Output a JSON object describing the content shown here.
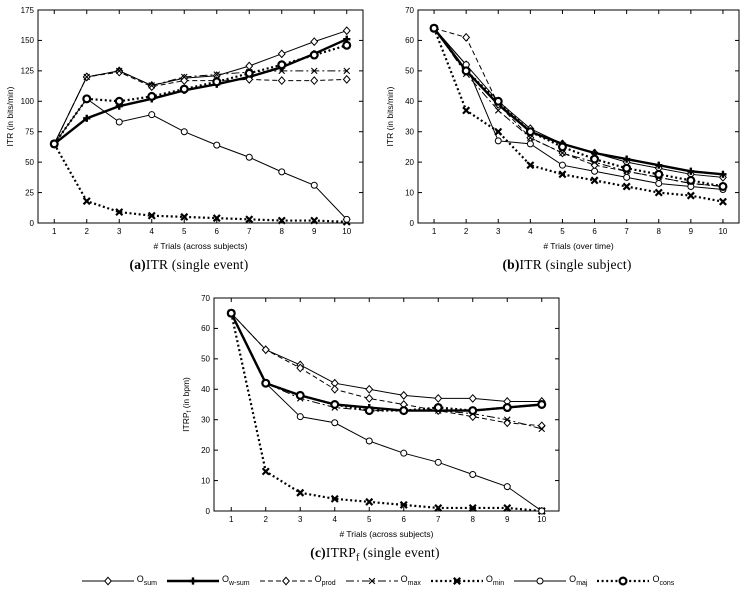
{
  "figure": {
    "background": "#ffffff",
    "ink": "#000000"
  },
  "captions": [
    {
      "prefix": "(a)",
      "main": "ITR",
      "sub": "",
      "rest": " (single event)"
    },
    {
      "prefix": "(b)",
      "main": "ITR",
      "sub": "",
      "rest": " (single subject)"
    },
    {
      "prefix": "(c)",
      "main": "ITRP",
      "sub": "f",
      "rest": " (single event)"
    }
  ],
  "legend": {
    "operator_prefix": "O",
    "items": [
      {
        "label": "sum",
        "marker": "diamond",
        "line": "solid",
        "width": 1
      },
      {
        "label": "w-sum",
        "marker": "plus",
        "line": "solid",
        "width": 2.4
      },
      {
        "label": "prod",
        "marker": "diamond",
        "line": "dashed",
        "width": 1
      },
      {
        "label": "max",
        "marker": "x",
        "line": "dashdot",
        "width": 1
      },
      {
        "label": "min",
        "marker": "x-bold",
        "line": "dotted",
        "width": 2.2
      },
      {
        "label": "maj",
        "marker": "circle",
        "line": "solid",
        "width": 1
      },
      {
        "label": "cons",
        "marker": "circle-bold",
        "line": "dotted",
        "width": 2.2
      }
    ]
  },
  "chart_data": [
    {
      "id": "a",
      "type": "line",
      "title": "",
      "xlabel": "# Trials (across subjects)",
      "ylabel": "ITR (in bits/min)",
      "xlim": [
        0.5,
        10.5
      ],
      "ylim": [
        0,
        175
      ],
      "xticks": [
        1,
        2,
        3,
        4,
        5,
        6,
        7,
        8,
        9,
        10
      ],
      "yticks": [
        0,
        25,
        50,
        75,
        100,
        125,
        150,
        175
      ],
      "x": [
        1,
        2,
        3,
        4,
        5,
        6,
        7,
        8,
        9,
        10
      ],
      "series": [
        {
          "name": "sum",
          "marker": "diamond",
          "line": "solid",
          "width": 1,
          "values": [
            65,
            120,
            125,
            113,
            119,
            121,
            129,
            139,
            149,
            158
          ]
        },
        {
          "name": "w-sum",
          "marker": "plus",
          "line": "solid",
          "width": 2.4,
          "values": [
            65,
            86,
            96,
            102,
            109,
            114,
            120,
            128,
            139,
            151
          ]
        },
        {
          "name": "prod",
          "marker": "diamond",
          "line": "dashed",
          "width": 1,
          "values": [
            65,
            120,
            124,
            112,
            117,
            117,
            118,
            117,
            117,
            118
          ]
        },
        {
          "name": "max",
          "marker": "x",
          "line": "dashdot",
          "width": 1,
          "values": [
            65,
            120,
            125,
            113,
            120,
            122,
            124,
            125,
            125,
            125
          ]
        },
        {
          "name": "min",
          "marker": "x-bold",
          "line": "dotted",
          "width": 2.2,
          "values": [
            65,
            18,
            9,
            6,
            5,
            4,
            3,
            2,
            2,
            1
          ]
        },
        {
          "name": "maj",
          "marker": "circle",
          "line": "solid",
          "width": 1,
          "values": [
            65,
            102,
            83,
            89,
            75,
            64,
            54,
            42,
            31,
            3
          ]
        },
        {
          "name": "cons",
          "marker": "circle-bold",
          "line": "dotted",
          "width": 2.2,
          "values": [
            65,
            102,
            100,
            104,
            110,
            116,
            123,
            130,
            138,
            146
          ]
        }
      ]
    },
    {
      "id": "b",
      "type": "line",
      "title": "",
      "xlabel": "# Trials (over time)",
      "ylabel": "ITR (in bits/min)",
      "xlim": [
        0.5,
        10.5
      ],
      "ylim": [
        0,
        70
      ],
      "xticks": [
        1,
        2,
        3,
        4,
        5,
        6,
        7,
        8,
        9,
        10
      ],
      "yticks": [
        0,
        10,
        20,
        30,
        40,
        50,
        60,
        70
      ],
      "x": [
        1,
        2,
        3,
        4,
        5,
        6,
        7,
        8,
        9,
        10
      ],
      "series": [
        {
          "name": "sum",
          "marker": "diamond",
          "line": "solid",
          "width": 1,
          "values": [
            64,
            52,
            40,
            31,
            26,
            23,
            20,
            18,
            16,
            15
          ]
        },
        {
          "name": "w-sum",
          "marker": "plus",
          "line": "solid",
          "width": 2.4,
          "values": [
            64,
            50,
            39,
            30,
            26,
            23,
            21,
            19,
            17,
            16
          ]
        },
        {
          "name": "prod",
          "marker": "diamond",
          "line": "dashed",
          "width": 1,
          "values": [
            64,
            61,
            39,
            28,
            23,
            19,
            17,
            15,
            13,
            12
          ]
        },
        {
          "name": "max",
          "marker": "x",
          "line": "dashdot",
          "width": 1,
          "values": [
            64,
            49,
            37,
            28,
            23,
            20,
            17,
            15,
            13,
            12
          ]
        },
        {
          "name": "min",
          "marker": "x-bold",
          "line": "dotted",
          "width": 2.2,
          "values": [
            64,
            37,
            30,
            19,
            16,
            14,
            12,
            10,
            9,
            7
          ]
        },
        {
          "name": "maj",
          "marker": "circle",
          "line": "solid",
          "width": 1,
          "values": [
            64,
            52,
            27,
            26,
            19,
            17,
            15,
            13,
            12,
            11
          ]
        },
        {
          "name": "cons",
          "marker": "circle-bold",
          "line": "dotted",
          "width": 2.2,
          "values": [
            64,
            50,
            40,
            30,
            25,
            21,
            18,
            16,
            14,
            12
          ]
        }
      ]
    },
    {
      "id": "c",
      "type": "line",
      "title": "",
      "xlabel": "# Trials (across subjects)",
      "ylabel": "ITRP",
      "ylabel_sub": "f",
      "ylabel_rest": " (in bpm)",
      "xlim": [
        0.5,
        10.5
      ],
      "ylim": [
        0,
        70
      ],
      "xticks": [
        1,
        2,
        3,
        4,
        5,
        6,
        7,
        8,
        9,
        10
      ],
      "yticks": [
        0,
        10,
        20,
        30,
        40,
        50,
        60,
        70
      ],
      "x": [
        1,
        2,
        3,
        4,
        5,
        6,
        7,
        8,
        9,
        10
      ],
      "series": [
        {
          "name": "sum",
          "marker": "diamond",
          "line": "solid",
          "width": 1,
          "values": [
            65,
            53,
            48,
            42,
            40,
            38,
            37,
            37,
            36,
            36
          ]
        },
        {
          "name": "w-sum",
          "marker": "plus",
          "line": "solid",
          "width": 2.4,
          "values": [
            65,
            42,
            38,
            35,
            34,
            33,
            33,
            33,
            34,
            35
          ]
        },
        {
          "name": "prod",
          "marker": "diamond",
          "line": "dashed",
          "width": 1,
          "values": [
            65,
            53,
            47,
            40,
            37,
            35,
            33,
            31,
            29,
            28
          ]
        },
        {
          "name": "max",
          "marker": "x",
          "line": "dashdot",
          "width": 1,
          "values": [
            65,
            42,
            37,
            34,
            33,
            33,
            33,
            32,
            30,
            27
          ]
        },
        {
          "name": "min",
          "marker": "x-bold",
          "line": "dotted",
          "width": 2.2,
          "values": [
            65,
            13,
            6,
            4,
            3,
            2,
            1,
            1,
            1,
            0
          ]
        },
        {
          "name": "maj",
          "marker": "circle",
          "line": "solid",
          "width": 1,
          "values": [
            65,
            42,
            31,
            29,
            23,
            19,
            16,
            12,
            8,
            0
          ]
        },
        {
          "name": "cons",
          "marker": "circle-bold",
          "line": "dotted",
          "width": 2.2,
          "values": [
            65,
            42,
            38,
            35,
            33,
            33,
            34,
            33,
            34,
            35
          ]
        }
      ]
    }
  ]
}
